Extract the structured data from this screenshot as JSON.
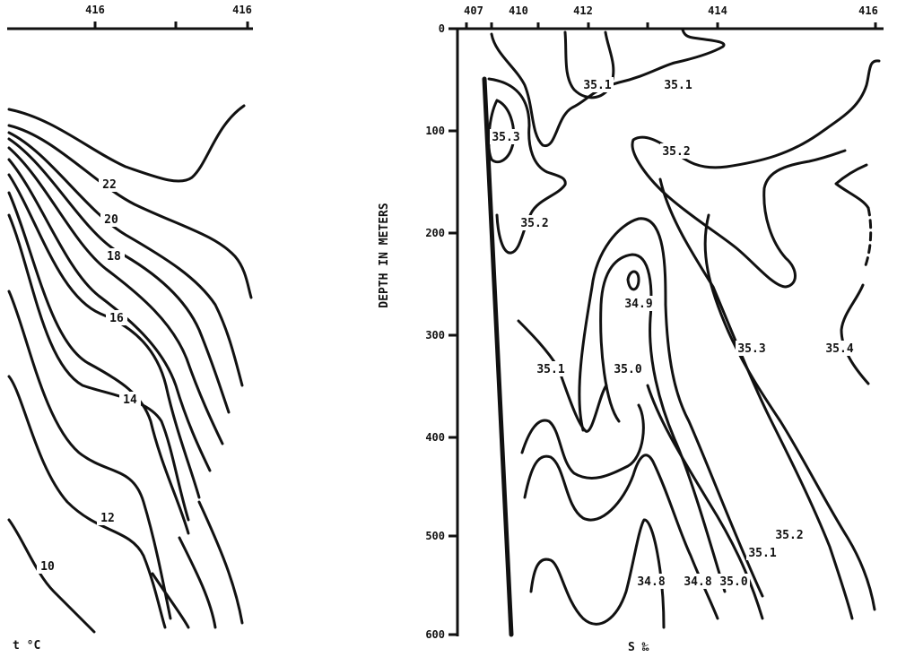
{
  "left_panel": {
    "top_ticks": [
      "416",
      "416"
    ],
    "isotherm_labels": [
      "22",
      "20",
      "18",
      "16",
      "14",
      "12",
      "10"
    ],
    "caption": "t °C"
  },
  "right_panel": {
    "top_ticks": [
      "407",
      "410",
      "412",
      "414",
      "416"
    ],
    "depth_ticks": [
      "0",
      "100",
      "200",
      "300",
      "400",
      "500",
      "600"
    ],
    "y_axis_label": "DEPTH IN METERS",
    "isohaline_labels": [
      "35.1",
      "35.1",
      "35.3",
      "35.2",
      "35.2",
      "34.9",
      "35.1",
      "35.0",
      "35.3",
      "35.4",
      "35.2",
      "35.1",
      "34.8",
      "34.8",
      "35.0"
    ],
    "caption": "S ‰"
  }
}
